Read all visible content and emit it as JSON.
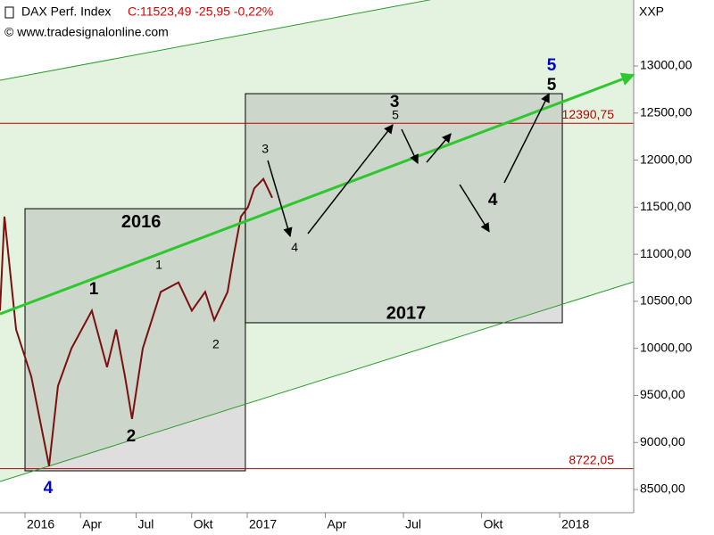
{
  "chart_data": {
    "type": "line",
    "title": "DAX Perf. Index",
    "quote": "C:11523,49 -25,95 -0,22%",
    "source": "© www.tradesignalonline.com",
    "axis_title": "XXP",
    "x": [
      -1.35,
      -1.11,
      -0.48,
      0.34,
      1.3,
      1.78,
      2.51,
      3.61,
      4.43,
      4.92,
      5.4,
      5.78,
      6.36,
      7.33,
      8.29,
      9.01,
      9.73,
      10.22,
      10.94,
      11.28,
      11.66,
      12.03,
      12.27,
      12.62,
      12.96
    ],
    "values": [
      10400,
      11400,
      10200,
      9700,
      8750,
      9600,
      10000,
      10400,
      9800,
      10200,
      9700,
      9250,
      10000,
      10600,
      10700,
      10400,
      10600,
      10300,
      10600,
      11000,
      11400,
      11500,
      11700,
      11800,
      11600
    ],
    "color": "#7a1010",
    "xlim": [
      -1.35,
      26.84
    ],
    "ylim": [
      8300,
      13500
    ],
    "xticks": [
      {
        "value": 0,
        "label": "2016"
      },
      {
        "value": 3,
        "label": "Apr"
      },
      {
        "value": 6,
        "label": "Jul"
      },
      {
        "value": 9,
        "label": "Okt"
      },
      {
        "value": 12,
        "label": "2017"
      },
      {
        "value": 15,
        "label": "Apr"
      },
      {
        "value": 18,
        "label": "Jul"
      },
      {
        "value": 21,
        "label": "Okt"
      },
      {
        "value": 24,
        "label": "2018"
      }
    ],
    "yticks": [
      {
        "value": 8500,
        "label": "8500,00"
      },
      {
        "value": 9000,
        "label": "9000,00"
      },
      {
        "value": 9500,
        "label": "9500,00"
      },
      {
        "value": 10000,
        "label": "10000,00"
      },
      {
        "value": 10500,
        "label": "10500,00"
      },
      {
        "value": 11000,
        "label": "11000,00"
      },
      {
        "value": 11500,
        "label": "11500,00"
      },
      {
        "value": 12000,
        "label": "12000,00"
      },
      {
        "value": 12500,
        "label": "12500,00"
      },
      {
        "value": 13000,
        "label": "13000,00"
      }
    ],
    "levels": [
      {
        "value": 12390.75,
        "label": "12390,75"
      },
      {
        "value": 8722.05,
        "label": "8722,05"
      }
    ],
    "channel": {
      "upper": [
        [
          -1.35,
          12848
        ],
        [
          26.84,
          14108
        ]
      ],
      "lower": [
        [
          -1.35,
          8585
        ],
        [
          26.84,
          10707
        ]
      ]
    },
    "trend": [
      [
        -1.35,
        10366
      ],
      [
        26.84,
        12905
      ]
    ],
    "boxes": [
      {
        "label": "2016",
        "x": [
          0,
          11.9
        ],
        "y": [
          8699,
          11484
        ],
        "label_at": [
          6.27,
          11333
        ]
      },
      {
        "label": "2017",
        "x": [
          11.9,
          24.1
        ],
        "y": [
          10272,
          12706
        ],
        "label_at": [
          18.1,
          10366
        ]
      }
    ],
    "projection": [
      [
        [
          12.79,
          11996
        ],
        [
          13.65,
          11191
        ]
      ],
      [
        [
          14.33,
          11219
        ],
        [
          17.59,
          12375
        ]
      ],
      [
        [
          17.93,
          12327
        ],
        [
          18.55,
          11967
        ]
      ],
      [
        [
          18.89,
          11977
        ],
        [
          19.82,
          12280
        ]
      ],
      [
        [
          20.16,
          11740
        ],
        [
          21.29,
          11240
        ]
      ],
      [
        [
          21.87,
          11759
        ],
        [
          23.59,
          12706
        ]
      ]
    ],
    "waves": [
      {
        "text": "1",
        "x": 3.71,
        "y": 10622,
        "size": "big",
        "color": "#000000"
      },
      {
        "text": "1",
        "x": 7.23,
        "y": 10878,
        "size": "small",
        "color": "#000000"
      },
      {
        "text": "2",
        "x": 5.73,
        "y": 9059,
        "size": "big",
        "color": "#000000"
      },
      {
        "text": "2",
        "x": 10.31,
        "y": 10035,
        "size": "small",
        "color": "#000000"
      },
      {
        "text": "3",
        "x": 12.69,
        "y": 12110,
        "size": "small",
        "color": "#000000"
      },
      {
        "text": "4",
        "x": 13.82,
        "y": 11067,
        "size": "small",
        "color": "#000000"
      },
      {
        "text": "3",
        "x": 17.66,
        "y": 12612,
        "size": "big",
        "color": "#000000"
      },
      {
        "text": "5",
        "x": 17.69,
        "y": 12470,
        "size": "small",
        "color": "#000000"
      },
      {
        "text": "4",
        "x": 21.43,
        "y": 11570,
        "size": "big",
        "color": "#000000"
      },
      {
        "text": "5",
        "x": 23.69,
        "y": 13000,
        "size": "big",
        "color": "#0000cc"
      },
      {
        "text": "5",
        "x": 23.69,
        "y": 12792,
        "size": "big",
        "color": "#000000"
      },
      {
        "text": "4",
        "x": 1.25,
        "y": 8510,
        "size": "big",
        "color": "#0000cc"
      }
    ]
  }
}
